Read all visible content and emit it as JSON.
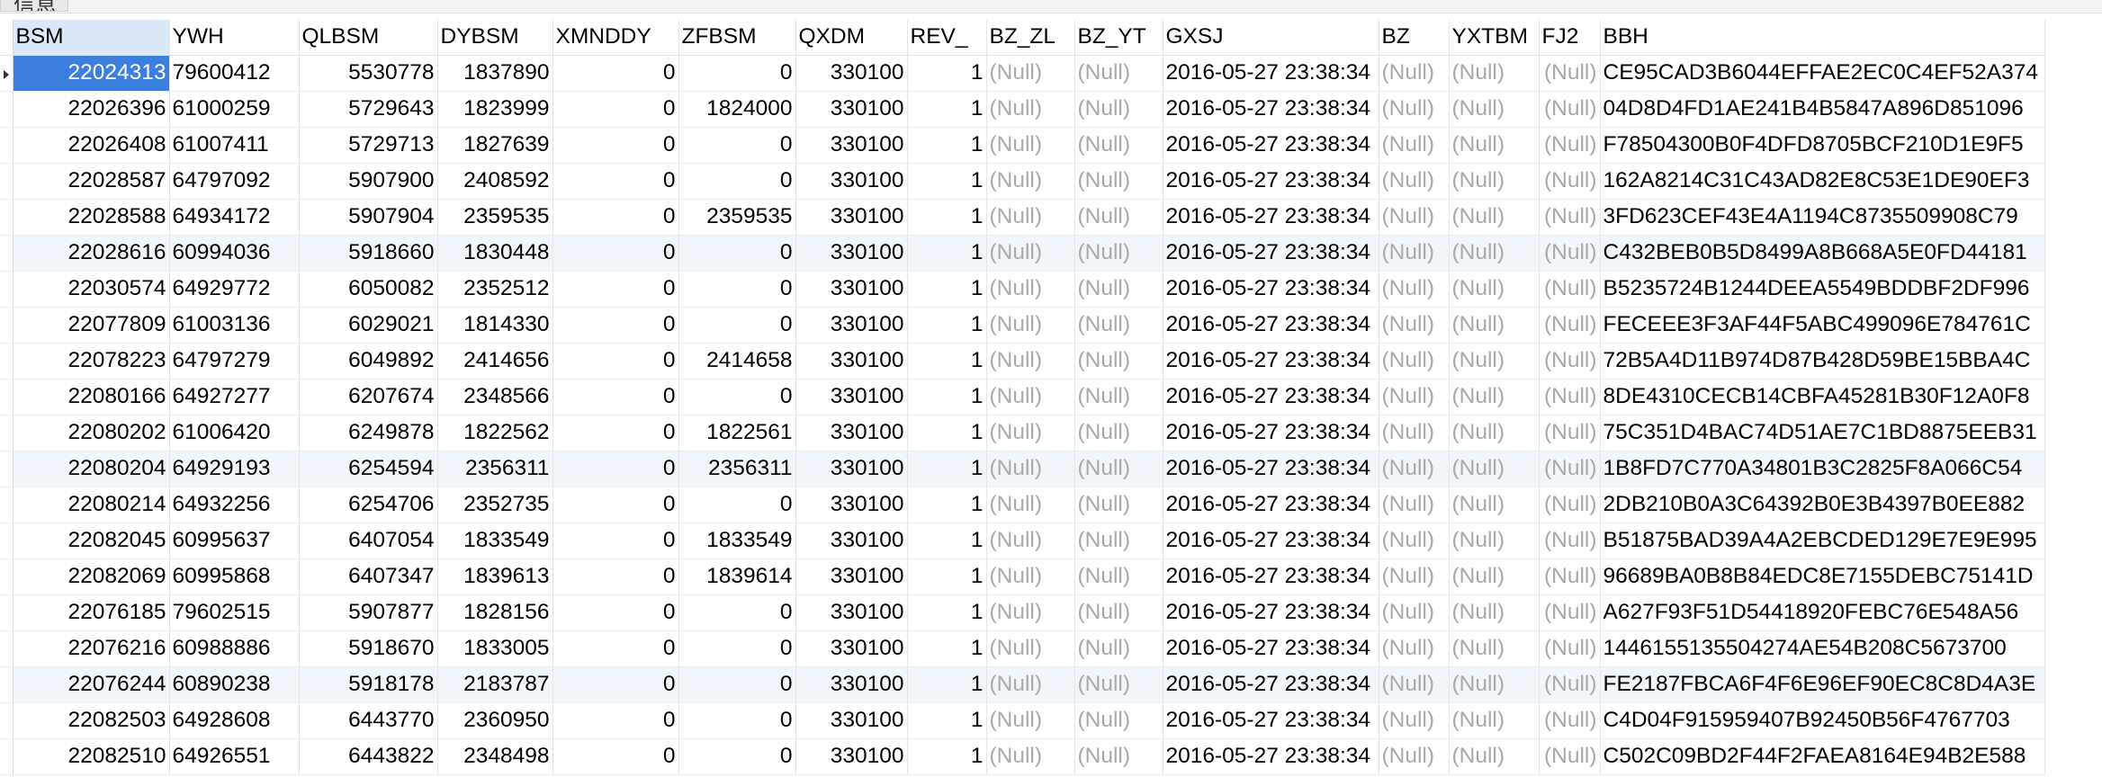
{
  "tab_label": "信息",
  "selected_row": 0,
  "columns": [
    "BSM",
    "YWH",
    "QLBSM",
    "DYBSM",
    "XMNDDY",
    "ZFBSM",
    "QXDM",
    "REV_",
    "BZ_ZL",
    "BZ_YT",
    "GXSJ",
    "BZ",
    "YXTBM",
    "FJ2",
    "BBH"
  ],
  "rows": [
    [
      "22024313",
      "79600412",
      "5530778",
      "1837890",
      "0",
      "0",
      "330100",
      "1",
      "(Null)",
      "(Null)",
      "2016-05-27 23:38:34",
      "(Null)",
      "(Null)",
      "(Null)",
      "CE95CAD3B6044EFFAE2EC0C4EF52A374"
    ],
    [
      "22026396",
      "61000259",
      "5729643",
      "1823999",
      "0",
      "1824000",
      "330100",
      "1",
      "(Null)",
      "(Null)",
      "2016-05-27 23:38:34",
      "(Null)",
      "(Null)",
      "(Null)",
      "04D8D4FD1AE241B4B5847A896D851096"
    ],
    [
      "22026408",
      "61007411",
      "5729713",
      "1827639",
      "0",
      "0",
      "330100",
      "1",
      "(Null)",
      "(Null)",
      "2016-05-27 23:38:34",
      "(Null)",
      "(Null)",
      "(Null)",
      "F78504300B0F4DFD8705BCF210D1E9F5"
    ],
    [
      "22028587",
      "64797092",
      "5907900",
      "2408592",
      "0",
      "0",
      "330100",
      "1",
      "(Null)",
      "(Null)",
      "2016-05-27 23:38:34",
      "(Null)",
      "(Null)",
      "(Null)",
      "162A8214C31C43AD82E8C53E1DE90EF3"
    ],
    [
      "22028588",
      "64934172",
      "5907904",
      "2359535",
      "0",
      "2359535",
      "330100",
      "1",
      "(Null)",
      "(Null)",
      "2016-05-27 23:38:34",
      "(Null)",
      "(Null)",
      "(Null)",
      "3FD623CEF43E4A1194C8735509908C79"
    ],
    [
      "22028616",
      "60994036",
      "5918660",
      "1830448",
      "0",
      "0",
      "330100",
      "1",
      "(Null)",
      "(Null)",
      "2016-05-27 23:38:34",
      "(Null)",
      "(Null)",
      "(Null)",
      "C432BEB0B5D8499A8B668A5E0FD44181"
    ],
    [
      "22030574",
      "64929772",
      "6050082",
      "2352512",
      "0",
      "0",
      "330100",
      "1",
      "(Null)",
      "(Null)",
      "2016-05-27 23:38:34",
      "(Null)",
      "(Null)",
      "(Null)",
      "B5235724B1244DEEA5549BDDBF2DF996"
    ],
    [
      "22077809",
      "61003136",
      "6029021",
      "1814330",
      "0",
      "0",
      "330100",
      "1",
      "(Null)",
      "(Null)",
      "2016-05-27 23:38:34",
      "(Null)",
      "(Null)",
      "(Null)",
      "FECEEE3F3AF44F5ABC499096E784761C"
    ],
    [
      "22078223",
      "64797279",
      "6049892",
      "2414656",
      "0",
      "2414658",
      "330100",
      "1",
      "(Null)",
      "(Null)",
      "2016-05-27 23:38:34",
      "(Null)",
      "(Null)",
      "(Null)",
      "72B5A4D11B974D87B428D59BE15BBA4C"
    ],
    [
      "22080166",
      "64927277",
      "6207674",
      "2348566",
      "0",
      "0",
      "330100",
      "1",
      "(Null)",
      "(Null)",
      "2016-05-27 23:38:34",
      "(Null)",
      "(Null)",
      "(Null)",
      "8DE4310CECB14CBFA45281B30F12A0F8"
    ],
    [
      "22080202",
      "61006420",
      "6249878",
      "1822562",
      "0",
      "1822561",
      "330100",
      "1",
      "(Null)",
      "(Null)",
      "2016-05-27 23:38:34",
      "(Null)",
      "(Null)",
      "(Null)",
      "75C351D4BAC74D51AE7C1BD8875EEB31"
    ],
    [
      "22080204",
      "64929193",
      "6254594",
      "2356311",
      "0",
      "2356311",
      "330100",
      "1",
      "(Null)",
      "(Null)",
      "2016-05-27 23:38:34",
      "(Null)",
      "(Null)",
      "(Null)",
      "1B8FD7C770A34801B3C2825F8A066C54"
    ],
    [
      "22080214",
      "64932256",
      "6254706",
      "2352735",
      "0",
      "0",
      "330100",
      "1",
      "(Null)",
      "(Null)",
      "2016-05-27 23:38:34",
      "(Null)",
      "(Null)",
      "(Null)",
      "2DB210B0A3C64392B0E3B4397B0EE882"
    ],
    [
      "22082045",
      "60995637",
      "6407054",
      "1833549",
      "0",
      "1833549",
      "330100",
      "1",
      "(Null)",
      "(Null)",
      "2016-05-27 23:38:34",
      "(Null)",
      "(Null)",
      "(Null)",
      "B51875BAD39A4A2EBCDED129E7E9E995"
    ],
    [
      "22082069",
      "60995868",
      "6407347",
      "1839613",
      "0",
      "1839614",
      "330100",
      "1",
      "(Null)",
      "(Null)",
      "2016-05-27 23:38:34",
      "(Null)",
      "(Null)",
      "(Null)",
      "96689BA0B8B84EDC8E7155DEBC75141D"
    ],
    [
      "22076185",
      "79602515",
      "5907877",
      "1828156",
      "0",
      "0",
      "330100",
      "1",
      "(Null)",
      "(Null)",
      "2016-05-27 23:38:34",
      "(Null)",
      "(Null)",
      "(Null)",
      "A627F93F51D54418920FEBC76E548A56"
    ],
    [
      "22076216",
      "60988886",
      "5918670",
      "1833005",
      "0",
      "0",
      "330100",
      "1",
      "(Null)",
      "(Null)",
      "2016-05-27 23:38:34",
      "(Null)",
      "(Null)",
      "(Null)",
      "1446155135504274AE54B208C5673700"
    ],
    [
      "22076244",
      "60890238",
      "5918178",
      "2183787",
      "0",
      "0",
      "330100",
      "1",
      "(Null)",
      "(Null)",
      "2016-05-27 23:38:34",
      "(Null)",
      "(Null)",
      "(Null)",
      "FE2187FBCA6F4F6E96EF90EC8C8D4A3E"
    ],
    [
      "22082503",
      "64928608",
      "6443770",
      "2360950",
      "0",
      "0",
      "330100",
      "1",
      "(Null)",
      "(Null)",
      "2016-05-27 23:38:34",
      "(Null)",
      "(Null)",
      "(Null)",
      "C4D04F915959407B92450B56F4767703"
    ],
    [
      "22082510",
      "64926551",
      "6443822",
      "2348498",
      "0",
      "0",
      "330100",
      "1",
      "(Null)",
      "(Null)",
      "2016-05-27 23:38:34",
      "(Null)",
      "(Null)",
      "(Null)",
      "C502C09BD2F44F2FAEA8164E94B2E588"
    ]
  ]
}
